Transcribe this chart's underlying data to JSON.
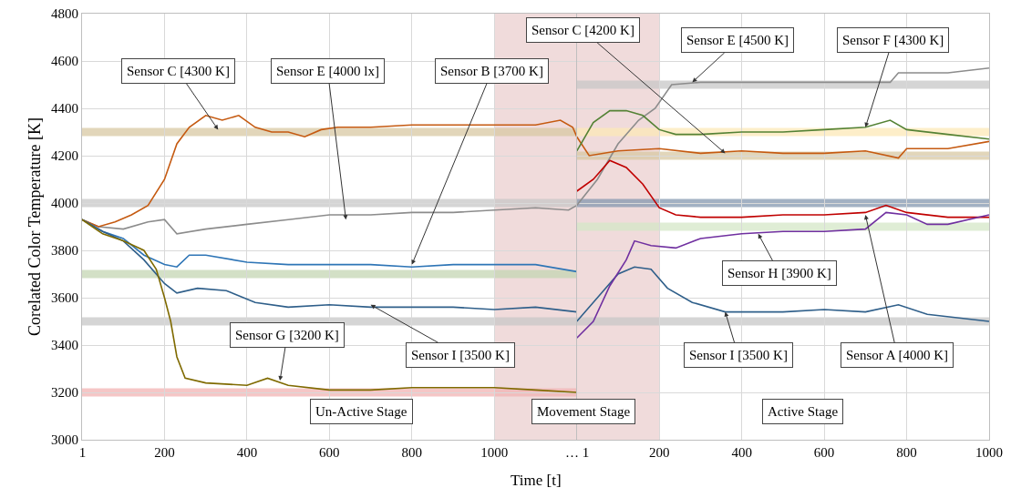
{
  "chart_data": [
    {
      "type": "line",
      "ylabel": "Corelated Color Temperature [K]",
      "xlabel": "Time [t]",
      "xlim": [
        0,
        1200
      ],
      "xticks": [
        {
          "value": 1,
          "label": "1"
        },
        200,
        400,
        600,
        800,
        1000
      ],
      "ylim": [
        3000,
        4800
      ],
      "yticks": [
        3000,
        3200,
        3400,
        3600,
        3800,
        4000,
        4200,
        4400,
        4600,
        4800
      ],
      "grid": true,
      "line_style": "solid",
      "bands": [
        {
          "axis": "x",
          "from": 1000,
          "to": 1200,
          "color": "#e6c3c3"
        }
      ],
      "ref_lines": [
        {
          "axis": "y",
          "value": 4300,
          "color": "#d9c9a3"
        },
        {
          "axis": "y",
          "value": 4000,
          "color": "#c8c8c8"
        },
        {
          "axis": "y",
          "value": 3700,
          "color": "#c5d6b3"
        },
        {
          "axis": "y",
          "value": 3500,
          "color": "#c8c8c8"
        },
        {
          "axis": "y",
          "value": 3200,
          "color": "#f2b3b3"
        }
      ],
      "series": [
        {
          "color": "#8c8c8c",
          "x": [
            0,
            40,
            100,
            160,
            200,
            230,
            300,
            400,
            500,
            600,
            700,
            800,
            900,
            1000,
            1100,
            1180,
            1200
          ],
          "values": [
            3930,
            3900,
            3890,
            3920,
            3930,
            3870,
            3890,
            3910,
            3930,
            3950,
            3950,
            3960,
            3960,
            3970,
            3980,
            3970,
            3990
          ]
        },
        {
          "color": "#c55a11",
          "x": [
            0,
            40,
            80,
            120,
            160,
            200,
            230,
            260,
            300,
            340,
            380,
            420,
            460,
            500,
            540,
            580,
            620,
            700,
            800,
            900,
            1000,
            1100,
            1160,
            1190,
            1200
          ],
          "values": [
            3930,
            3900,
            3920,
            3950,
            3990,
            4100,
            4250,
            4320,
            4370,
            4350,
            4370,
            4320,
            4300,
            4300,
            4280,
            4310,
            4320,
            4320,
            4330,
            4330,
            4330,
            4330,
            4350,
            4320,
            4280
          ]
        },
        {
          "color": "#2e75b6",
          "x": [
            0,
            50,
            100,
            150,
            200,
            230,
            260,
            300,
            400,
            500,
            600,
            700,
            800,
            900,
            1000,
            1100,
            1200
          ],
          "values": [
            3930,
            3880,
            3850,
            3780,
            3740,
            3730,
            3780,
            3780,
            3750,
            3740,
            3740,
            3740,
            3730,
            3740,
            3740,
            3740,
            3710
          ]
        },
        {
          "color": "#2f5f8a",
          "x": [
            0,
            50,
            100,
            150,
            200,
            230,
            280,
            350,
            420,
            500,
            600,
            700,
            800,
            900,
            1000,
            1100,
            1200
          ],
          "values": [
            3930,
            3880,
            3840,
            3760,
            3660,
            3620,
            3640,
            3630,
            3580,
            3560,
            3570,
            3560,
            3560,
            3560,
            3550,
            3560,
            3540
          ]
        },
        {
          "color": "#7f6a00",
          "x": [
            0,
            50,
            100,
            150,
            180,
            200,
            215,
            230,
            250,
            300,
            400,
            450,
            500,
            600,
            700,
            800,
            900,
            1000,
            1100,
            1200
          ],
          "values": [
            3930,
            3870,
            3840,
            3800,
            3720,
            3600,
            3500,
            3350,
            3260,
            3240,
            3230,
            3260,
            3230,
            3210,
            3210,
            3220,
            3220,
            3220,
            3210,
            3200
          ]
        }
      ],
      "annotations": [
        {
          "text": "Sensor C [4300 K]",
          "x": 330,
          "y": 4310
        },
        {
          "text": "Sensor E [4000 lx]",
          "x": 640,
          "y": 3930
        },
        {
          "text": "Sensor B [3700 K]",
          "x": 800,
          "y": 3740
        },
        {
          "text": "Sensor G [3200 K]",
          "x": 480,
          "y": 3250
        },
        {
          "text": "Sensor I [3500 K]",
          "x": 700,
          "y": 3570
        },
        "Un-Active Stage",
        "Movement Stage"
      ]
    },
    {
      "type": "line",
      "xlim": [
        0,
        1000
      ],
      "xticks": [
        {
          "value": 1,
          "label": "… 1"
        },
        200,
        400,
        600,
        800,
        1000
      ],
      "ylim": [
        3000,
        4800
      ],
      "yticks": [
        3000,
        3200,
        3400,
        3600,
        3800,
        4000,
        4200,
        4400,
        4600,
        4800
      ],
      "tick_labels": "x",
      "grid": true,
      "line_style": "solid",
      "bands": [
        {
          "axis": "x",
          "from": 0,
          "to": 200,
          "color": "#e6c3c3"
        }
      ],
      "ref_lines": [
        {
          "axis": "y",
          "value": 4500,
          "color": "#c8c8c8"
        },
        {
          "axis": "y",
          "value": 4300,
          "color": "#fde9b8"
        },
        {
          "axis": "y",
          "value": 4200,
          "color": "#d9c9a3"
        },
        {
          "axis": "y",
          "value": 4000,
          "color": "#8497b0"
        },
        {
          "axis": "y",
          "value": 3900,
          "color": "#d5e8c8"
        },
        {
          "axis": "y",
          "value": 3500,
          "color": "#c8c8c8"
        }
      ],
      "series": [
        {
          "color": "#8c8c8c",
          "x": [
            0,
            50,
            100,
            150,
            190,
            230,
            300,
            400,
            500,
            600,
            700,
            760,
            780,
            900,
            1000
          ],
          "values": [
            3990,
            4100,
            4250,
            4350,
            4400,
            4500,
            4510,
            4510,
            4510,
            4510,
            4510,
            4510,
            4550,
            4550,
            4570
          ]
        },
        {
          "color": "#c55a11",
          "x": [
            0,
            30,
            100,
            200,
            300,
            400,
            500,
            600,
            700,
            780,
            800,
            900,
            1000
          ],
          "values": [
            4280,
            4200,
            4220,
            4230,
            4210,
            4220,
            4210,
            4210,
            4220,
            4190,
            4230,
            4230,
            4260
          ]
        },
        {
          "color": "#2f5f8a",
          "x": [
            0,
            60,
            100,
            140,
            180,
            220,
            280,
            360,
            500,
            600,
            700,
            780,
            850,
            1000
          ],
          "values": [
            3500,
            3620,
            3700,
            3730,
            3720,
            3640,
            3580,
            3540,
            3540,
            3550,
            3540,
            3570,
            3530,
            3500
          ]
        },
        {
          "color": "#c00000",
          "x": [
            0,
            40,
            80,
            120,
            160,
            200,
            240,
            300,
            400,
            500,
            600,
            700,
            750,
            800,
            900,
            1000
          ],
          "values": [
            4050,
            4100,
            4180,
            4150,
            4080,
            3980,
            3950,
            3940,
            3940,
            3950,
            3950,
            3960,
            3990,
            3960,
            3940,
            3940
          ]
        },
        {
          "color": "#7030a0",
          "x": [
            0,
            40,
            80,
            120,
            140,
            180,
            240,
            300,
            400,
            500,
            600,
            700,
            750,
            800,
            850,
            900,
            1000
          ],
          "values": [
            3430,
            3500,
            3650,
            3760,
            3840,
            3820,
            3810,
            3850,
            3870,
            3880,
            3880,
            3890,
            3960,
            3950,
            3910,
            3910,
            3950
          ]
        },
        {
          "color": "#548235",
          "x": [
            0,
            40,
            80,
            120,
            160,
            200,
            240,
            300,
            400,
            500,
            600,
            700,
            760,
            800,
            900,
            1000
          ],
          "values": [
            4220,
            4340,
            4390,
            4390,
            4370,
            4310,
            4290,
            4290,
            4300,
            4300,
            4310,
            4320,
            4350,
            4310,
            4290,
            4270
          ]
        }
      ],
      "annotations": [
        {
          "text": "Sensor C [4200 K]",
          "x": 360,
          "y": 4210
        },
        {
          "text": "Sensor E [4500 K]",
          "x": 280,
          "y": 4510
        },
        {
          "text": "Sensor F [4300 K]",
          "x": 700,
          "y": 4320
        },
        {
          "text": "Sensor H [3900 K]",
          "x": 440,
          "y": 3870
        },
        {
          "text": "Sensor I [3500 K]",
          "x": 360,
          "y": 3540
        },
        {
          "text": "Sensor A [4000 K]",
          "x": 700,
          "y": 3950
        },
        "Active Stage"
      ]
    }
  ]
}
